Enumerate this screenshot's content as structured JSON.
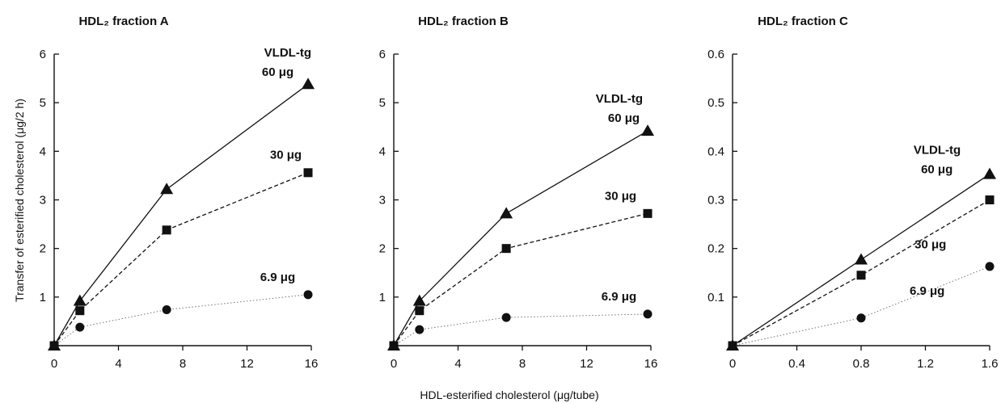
{
  "figure": {
    "ylabel": "Transfer of esterified cholesterol (μg/2 h)",
    "xlabel": "HDL-esterified cholesterol (μg/tube)"
  },
  "chart_data": [
    {
      "type": "line",
      "title": "HDL₂ fraction A",
      "xlim": [
        0,
        16
      ],
      "ylim": [
        0,
        6
      ],
      "xticks": [
        "0",
        "4",
        "8",
        "12",
        "16"
      ],
      "yticks": [
        "1",
        "2",
        "3",
        "4",
        "5",
        "6"
      ],
      "series": [
        {
          "name": "VLDL-tg 60 μg",
          "marker": "triangle",
          "style": "solid",
          "x": [
            0,
            1.6,
            7.0,
            15.8
          ],
          "y": [
            0,
            0.92,
            3.22,
            5.38
          ]
        },
        {
          "name": "30 μg",
          "marker": "square",
          "style": "dashed",
          "x": [
            0,
            1.6,
            7.0,
            15.8
          ],
          "y": [
            0,
            0.72,
            2.38,
            3.56
          ]
        },
        {
          "name": "6.9 μg",
          "marker": "circle",
          "style": "dotted",
          "x": [
            0,
            1.6,
            7.0,
            15.8
          ],
          "y": [
            0,
            0.38,
            0.74,
            1.05
          ]
        }
      ],
      "labels": [
        {
          "text": "VLDL-tg",
          "x": 16.0,
          "y": 5.95
        },
        {
          "text": "60 μg",
          "x": 14.9,
          "y": 5.55
        },
        {
          "text": "30 μg",
          "x": 15.4,
          "y": 3.85
        },
        {
          "text": "6.9 μg",
          "x": 15.0,
          "y": 1.33
        }
      ]
    },
    {
      "type": "line",
      "title": "HDL₂ fraction B",
      "xlim": [
        0,
        16
      ],
      "ylim": [
        0,
        6
      ],
      "xticks": [
        "0",
        "4",
        "8",
        "12",
        "16"
      ],
      "yticks": [
        "1",
        "2",
        "3",
        "4",
        "5",
        "6"
      ],
      "series": [
        {
          "name": "VLDL-tg 60 μg",
          "marker": "triangle",
          "style": "solid",
          "x": [
            0,
            1.6,
            7.0,
            15.8
          ],
          "y": [
            0,
            0.92,
            2.72,
            4.42
          ]
        },
        {
          "name": "30 μg",
          "marker": "square",
          "style": "dashed",
          "x": [
            0,
            1.6,
            7.0,
            15.8
          ],
          "y": [
            0,
            0.72,
            2.0,
            2.72
          ]
        },
        {
          "name": "6.9 μg",
          "marker": "circle",
          "style": "dotted",
          "x": [
            0,
            1.6,
            7.0,
            15.8
          ],
          "y": [
            0,
            0.33,
            0.58,
            0.65
          ]
        }
      ],
      "labels": [
        {
          "text": "VLDL-tg",
          "x": 15.5,
          "y": 5.0
        },
        {
          "text": "60 μg",
          "x": 15.3,
          "y": 4.6
        },
        {
          "text": "30 μg",
          "x": 15.1,
          "y": 3.0
        },
        {
          "text": "6.9 μg",
          "x": 15.1,
          "y": 0.93
        }
      ]
    },
    {
      "type": "line",
      "title": "HDL₂ fraction C",
      "xlim": [
        0,
        1.6
      ],
      "ylim": [
        0,
        0.6
      ],
      "xticks": [
        "0",
        "0.4",
        "0.8",
        "1.2",
        "1.6"
      ],
      "yticks": [
        "0.1",
        "0.2",
        "0.3",
        "0.4",
        "0.5",
        "0.6"
      ],
      "series": [
        {
          "name": "VLDL-tg 60 μg",
          "marker": "triangle",
          "style": "solid",
          "x": [
            0,
            0.8,
            1.6
          ],
          "y": [
            0,
            0.177,
            0.353
          ]
        },
        {
          "name": "30 μg",
          "marker": "square",
          "style": "dashed",
          "x": [
            0,
            0.8,
            1.6
          ],
          "y": [
            0,
            0.145,
            0.3
          ]
        },
        {
          "name": "6.9 μg",
          "marker": "circle",
          "style": "dotted",
          "x": [
            0,
            0.8,
            1.6
          ],
          "y": [
            0,
            0.057,
            0.163
          ]
        }
      ],
      "labels": [
        {
          "text": "VLDL-tg",
          "x": 1.42,
          "y": 0.395
        },
        {
          "text": "60 μg",
          "x": 1.37,
          "y": 0.355
        },
        {
          "text": "30 μg",
          "x": 1.33,
          "y": 0.2
        },
        {
          "text": "6.9 μg",
          "x": 1.32,
          "y": 0.105
        }
      ]
    }
  ]
}
